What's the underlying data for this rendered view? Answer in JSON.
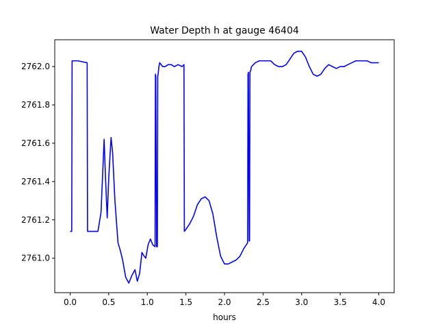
{
  "chart_data": {
    "type": "line",
    "title": "Water Depth h at gauge 46404",
    "xlabel": "hours",
    "ylabel": "",
    "xlim": [
      -0.2,
      4.2
    ],
    "ylim": [
      2760.82,
      2762.14
    ],
    "xticks": [
      0.0,
      0.5,
      1.0,
      1.5,
      2.0,
      2.5,
      3.0,
      3.5,
      4.0
    ],
    "xtick_labels": [
      "0.0",
      "0.5",
      "1.0",
      "1.5",
      "2.0",
      "2.5",
      "3.0",
      "3.5",
      "4.0"
    ],
    "yticks": [
      2761.0,
      2761.2,
      2761.4,
      2761.6,
      2761.8,
      2762.0
    ],
    "ytick_labels": [
      "2761.0",
      "2761.2",
      "2761.4",
      "2761.6",
      "2761.8",
      "2762.0"
    ],
    "grid": false,
    "series": [
      {
        "color": "#0000ff",
        "x": [
          0.0,
          0.02,
          0.025,
          0.1,
          0.22,
          0.225,
          0.3,
          0.36,
          0.4,
          0.44,
          0.46,
          0.48,
          0.5,
          0.53,
          0.55,
          0.58,
          0.62,
          0.65,
          0.68,
          0.72,
          0.76,
          0.8,
          0.84,
          0.87,
          0.9,
          0.93,
          0.96,
          0.98,
          1.01,
          1.04,
          1.07,
          1.1,
          1.105,
          1.11,
          1.12,
          1.13,
          1.135,
          1.14,
          1.15,
          1.16,
          1.18,
          1.2,
          1.23,
          1.27,
          1.31,
          1.35,
          1.4,
          1.45,
          1.475,
          1.48,
          1.5,
          1.55,
          1.6,
          1.65,
          1.7,
          1.75,
          1.8,
          1.85,
          1.9,
          1.95,
          2.0,
          2.05,
          2.1,
          2.15,
          2.2,
          2.25,
          2.3,
          2.305,
          2.31,
          2.32,
          2.325,
          2.33,
          2.34,
          2.345,
          2.35,
          2.4,
          2.45,
          2.5,
          2.55,
          2.6,
          2.65,
          2.7,
          2.75,
          2.8,
          2.85,
          2.9,
          2.95,
          3.0,
          3.05,
          3.1,
          3.15,
          3.2,
          3.25,
          3.3,
          3.35,
          3.4,
          3.45,
          3.5,
          3.55,
          3.6,
          3.65,
          3.7,
          3.75,
          3.8,
          3.85,
          3.9,
          3.95,
          4.0
        ],
        "y": [
          2761.14,
          2761.14,
          2762.03,
          2762.03,
          2762.02,
          2761.14,
          2761.14,
          2761.14,
          2761.24,
          2761.62,
          2761.4,
          2761.21,
          2761.42,
          2761.63,
          2761.55,
          2761.3,
          2761.08,
          2761.04,
          2760.99,
          2760.9,
          2760.87,
          2760.91,
          2760.94,
          2760.88,
          2760.92,
          2761.03,
          2761.01,
          2761.0,
          2761.07,
          2761.1,
          2761.07,
          2761.06,
          2761.96,
          2761.95,
          2761.06,
          2761.06,
          2761.95,
          2761.96,
          2762.0,
          2762.02,
          2762.01,
          2762.0,
          2762.0,
          2762.01,
          2762.01,
          2762.0,
          2762.01,
          2762.0,
          2762.01,
          2761.14,
          2761.15,
          2761.18,
          2761.22,
          2761.28,
          2761.31,
          2761.32,
          2761.3,
          2761.23,
          2761.11,
          2761.01,
          2760.97,
          2760.97,
          2760.98,
          2760.99,
          2761.01,
          2761.05,
          2761.08,
          2761.96,
          2761.97,
          2761.09,
          2761.09,
          2761.97,
          2761.98,
          2761.99,
          2762.0,
          2762.02,
          2762.03,
          2762.03,
          2762.03,
          2762.03,
          2762.01,
          2762.0,
          2762.0,
          2762.01,
          2762.04,
          2762.07,
          2762.08,
          2762.08,
          2762.05,
          2762.0,
          2761.96,
          2761.95,
          2761.96,
          2761.99,
          2762.01,
          2762.0,
          2761.99,
          2762.0,
          2762.0,
          2762.01,
          2762.02,
          2762.03,
          2762.03,
          2762.03,
          2762.03,
          2762.02,
          2762.02,
          2762.02
        ]
      }
    ]
  }
}
